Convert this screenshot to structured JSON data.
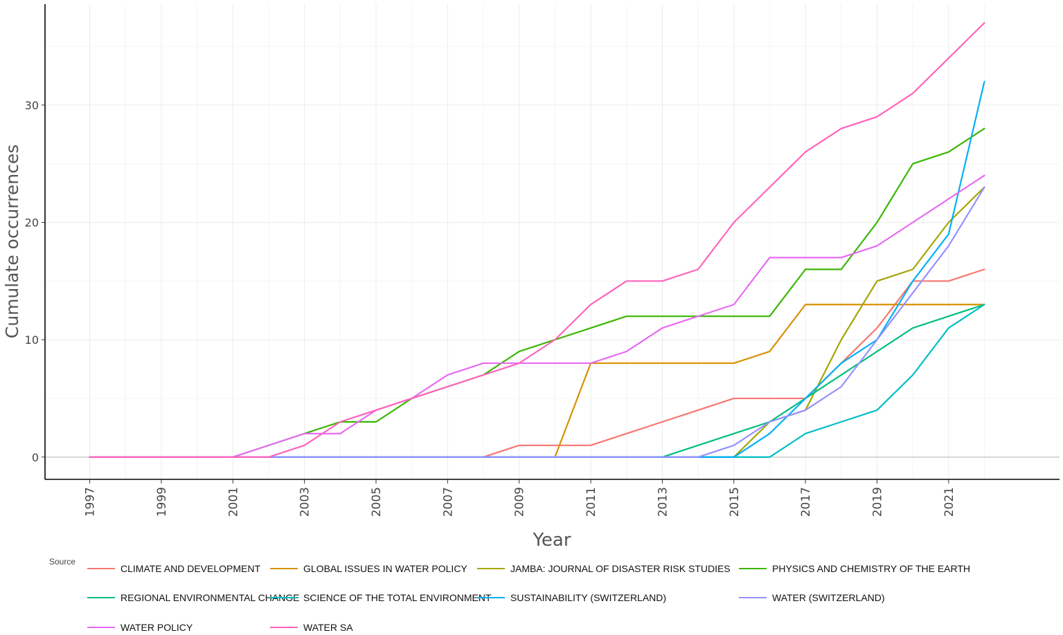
{
  "chart_data": {
    "type": "line",
    "title": "",
    "xlabel": "Year",
    "ylabel": "Cumulate occurrences",
    "legend_title": "Source",
    "legend_position": "bottom",
    "x": [
      1997,
      1998,
      1999,
      2000,
      2001,
      2002,
      2003,
      2004,
      2005,
      2006,
      2007,
      2008,
      2009,
      2010,
      2011,
      2012,
      2013,
      2014,
      2015,
      2016,
      2017,
      2018,
      2019,
      2020,
      2021,
      2022
    ],
    "x_ticks": [
      "1997",
      "1999",
      "2001",
      "2003",
      "2005",
      "2007",
      "2009",
      "2011",
      "2013",
      "2015",
      "2017",
      "2019",
      "2021"
    ],
    "y_ticks": [
      "0",
      "10",
      "20",
      "30"
    ],
    "xlim": [
      1995.75,
      2024.1
    ],
    "ylim": [
      -1.9,
      38.6
    ],
    "grid": true,
    "series": [
      {
        "name": "CLIMATE AND DEVELOPMENT",
        "color": "#F8766D",
        "values": [
          0,
          0,
          0,
          0,
          0,
          0,
          0,
          0,
          0,
          0,
          0,
          0,
          1,
          1,
          1,
          2,
          3,
          4,
          5,
          5,
          5,
          8,
          11,
          15,
          15,
          16
        ]
      },
      {
        "name": "GLOBAL ISSUES IN WATER POLICY",
        "color": "#D89000",
        "values": [
          0,
          0,
          0,
          0,
          0,
          0,
          0,
          0,
          0,
          0,
          0,
          0,
          0,
          0,
          8,
          8,
          8,
          8,
          8,
          9,
          13,
          13,
          13,
          13,
          13,
          13
        ]
      },
      {
        "name": "JAMBA: JOURNAL OF DISASTER RISK STUDIES",
        "color": "#A3A500",
        "values": [
          0,
          0,
          0,
          0,
          0,
          0,
          0,
          0,
          0,
          0,
          0,
          0,
          0,
          0,
          0,
          0,
          0,
          0,
          0,
          3,
          4,
          10,
          15,
          16,
          20,
          23
        ]
      },
      {
        "name": "PHYSICS AND CHEMISTRY OF THE EARTH",
        "color": "#39B600",
        "values": [
          0,
          0,
          0,
          0,
          0,
          1,
          2,
          3,
          3,
          5,
          6,
          7,
          9,
          10,
          11,
          12,
          12,
          12,
          12,
          12,
          16,
          16,
          20,
          25,
          26,
          28
        ]
      },
      {
        "name": "REGIONAL ENVIRONMENTAL CHANGE",
        "color": "#00BF7D",
        "values": [
          0,
          0,
          0,
          0,
          0,
          0,
          0,
          0,
          0,
          0,
          0,
          0,
          0,
          0,
          0,
          0,
          0,
          1,
          2,
          3,
          5,
          7,
          9,
          11,
          12,
          13
        ]
      },
      {
        "name": "SCIENCE OF THE TOTAL ENVIRONMENT",
        "color": "#00BFC4",
        "values": [
          0,
          0,
          0,
          0,
          0,
          0,
          0,
          0,
          0,
          0,
          0,
          0,
          0,
          0,
          0,
          0,
          0,
          0,
          0,
          0,
          2,
          3,
          4,
          7,
          11,
          13
        ]
      },
      {
        "name": "SUSTAINABILITY (SWITZERLAND)",
        "color": "#00B0F6",
        "values": [
          0,
          0,
          0,
          0,
          0,
          0,
          0,
          0,
          0,
          0,
          0,
          0,
          0,
          0,
          0,
          0,
          0,
          0,
          0,
          2,
          5,
          8,
          10,
          15,
          19,
          32
        ]
      },
      {
        "name": "WATER (SWITZERLAND)",
        "color": "#9590FF",
        "values": [
          0,
          0,
          0,
          0,
          0,
          0,
          0,
          0,
          0,
          0,
          0,
          0,
          0,
          0,
          0,
          0,
          0,
          0,
          1,
          3,
          4,
          6,
          10,
          14,
          18,
          23
        ]
      },
      {
        "name": "WATER POLICY",
        "color": "#E76BF3",
        "values": [
          0,
          0,
          0,
          0,
          0,
          1,
          2,
          2,
          4,
          5,
          7,
          8,
          8,
          8,
          8,
          9,
          11,
          12,
          13,
          17,
          17,
          17,
          18,
          20,
          22,
          24
        ]
      },
      {
        "name": "WATER SA",
        "color": "#FF62BC",
        "values": [
          0,
          0,
          0,
          0,
          0,
          0,
          1,
          3,
          4,
          5,
          6,
          7,
          8,
          10,
          13,
          15,
          15,
          16,
          20,
          23,
          26,
          28,
          29,
          31,
          34,
          37
        ]
      }
    ]
  }
}
